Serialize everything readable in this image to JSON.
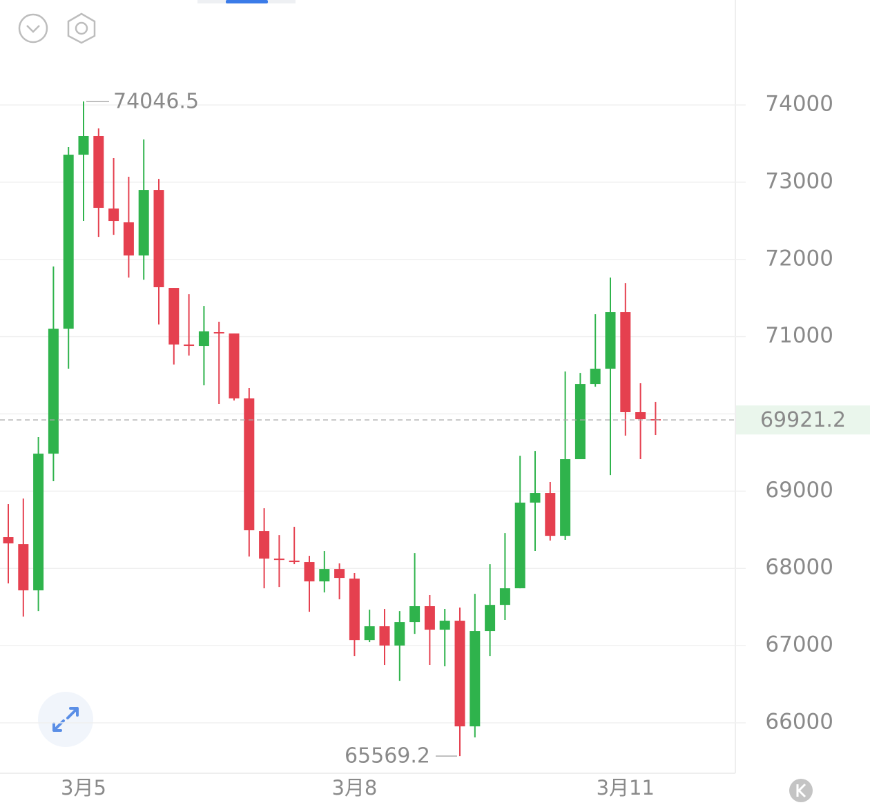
{
  "chart_data": {
    "type": "candlestick",
    "categories": [
      null,
      null,
      null,
      null,
      null,
      "3月5",
      null,
      null,
      null,
      null,
      null,
      null,
      null,
      null,
      null,
      null,
      null,
      null,
      null,
      null,
      null,
      null,
      null,
      "3月8",
      null,
      null,
      null,
      null,
      null,
      null,
      null,
      null,
      null,
      null,
      null,
      null,
      null,
      null,
      null,
      null,
      null,
      "3月11",
      null,
      null
    ],
    "open": [
      68404,
      68314,
      67715,
      69485,
      71103,
      73356,
      73598,
      72659,
      72480,
      72051,
      72900,
      71631,
      70898,
      70880,
      71059,
      71041,
      70200,
      68484,
      68126,
      68100,
      68082,
      67831,
      67992,
      67867,
      67071,
      67250,
      67000,
      67304,
      67510,
      67206,
      67322,
      65954,
      67188,
      67527,
      67742,
      68851,
      68976,
      68421,
      69414,
      70388,
      70585,
      71318,
      70022,
      69932
    ],
    "high": [
      68833,
      68904,
      69700,
      71908,
      73455,
      74046.5,
      73696,
      73312,
      73070,
      73553,
      73043,
      71631,
      71550,
      71398,
      71193,
      71041,
      70335,
      68779,
      68430,
      68538,
      68162,
      68225,
      68064,
      67939,
      67465,
      67474,
      67447,
      68198,
      67653,
      67474,
      67492,
      67670,
      68055,
      68457,
      69458,
      69521,
      69119,
      70549,
      70531,
      71291,
      71765,
      71693,
      70397,
      70156
    ],
    "low": [
      67805,
      67375,
      67447,
      69128,
      70585,
      72498,
      72292,
      72319,
      71765,
      71738,
      71157,
      70639,
      70755,
      70370,
      70129,
      70173,
      68153,
      67742,
      67760,
      68055,
      67438,
      67688,
      67599,
      66866,
      67045,
      66750,
      66544,
      67152,
      66750,
      66732,
      65569.2,
      65811,
      66866,
      67331,
      67742,
      68225,
      68359,
      68368,
      69414,
      70352,
      69208,
      69718,
      69414,
      69727
    ],
    "close": [
      68323,
      67715,
      69485,
      71103,
      73356,
      73598,
      72668,
      72498,
      72051,
      72900,
      71640,
      70898,
      70889,
      71068,
      71050,
      70200,
      68493,
      68126,
      68117,
      68082,
      67831,
      67992,
      67876,
      67071,
      67250,
      67000,
      67304,
      67510,
      67206,
      67322,
      65954,
      67188,
      67527,
      67742,
      68851,
      68976,
      68421,
      69414,
      70388,
      70585,
      71318,
      70022,
      69932,
      69921.2
    ],
    "up_color": "#2fb34c",
    "down_color": "#e5404f",
    "last_color": "#2fa84f",
    "ylim": [
      65347,
      75359
    ],
    "yticks": [
      66000,
      67000,
      68000,
      69000,
      70000,
      71000,
      72000,
      73000,
      74000
    ],
    "yticks_labeled": [
      66000,
      67000,
      68000,
      69000,
      71000,
      72000,
      73000,
      74000
    ],
    "grid": true
  }
}
